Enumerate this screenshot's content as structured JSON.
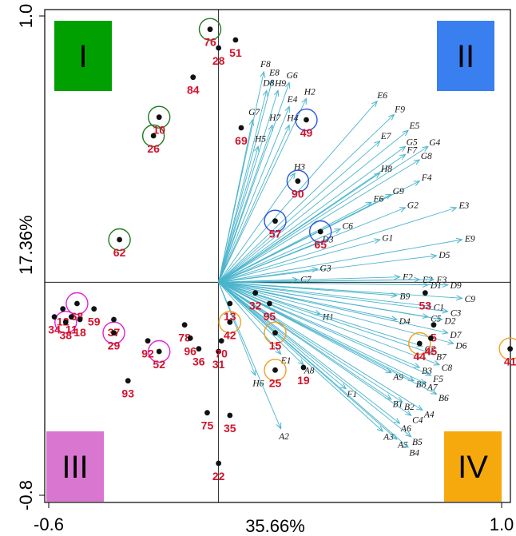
{
  "chart_data": {
    "type": "scatter",
    "subtype": "pca-biplot",
    "xlabel": "35.66%",
    "ylabel": "17.36%",
    "xlim": [
      -0.6,
      1.0
    ],
    "ylim": [
      -0.8,
      1.0
    ],
    "x_ticks": [
      "-0.6",
      "1.0"
    ],
    "y_ticks": [
      "1.0",
      "-0.8"
    ],
    "zero_lines": true,
    "arrow_color": "#4bb4cc",
    "quadrants": [
      {
        "label": "I",
        "color": "#00a000",
        "position": "top-left"
      },
      {
        "label": "II",
        "color": "#3a7ff0",
        "position": "top-right"
      },
      {
        "label": "III",
        "color": "#d876d0",
        "position": "bottom-left"
      },
      {
        "label": "IV",
        "color": "#f5a90d",
        "position": "bottom-right"
      }
    ],
    "circle_colors": {
      "I": "#1f7a1f",
      "II": "#2a55e0",
      "III": "#e01fe0",
      "IV": "#f0a020"
    },
    "points": [
      {
        "label": "76",
        "x": -0.03,
        "y": 0.95,
        "group": "I"
      },
      {
        "label": "28",
        "x": 0.0,
        "y": 0.88
      },
      {
        "label": "51",
        "x": 0.06,
        "y": 0.91
      },
      {
        "label": "84",
        "x": -0.09,
        "y": 0.77
      },
      {
        "label": "10",
        "x": -0.21,
        "y": 0.62,
        "group": "I"
      },
      {
        "label": "26",
        "x": -0.23,
        "y": 0.55,
        "group": "I"
      },
      {
        "label": "69",
        "x": 0.08,
        "y": 0.58
      },
      {
        "label": "49",
        "x": 0.31,
        "y": 0.61,
        "group": "II"
      },
      {
        "label": "90",
        "x": 0.28,
        "y": 0.38,
        "group": "II"
      },
      {
        "label": "57",
        "x": 0.2,
        "y": 0.23,
        "group": "II"
      },
      {
        "label": "65",
        "x": 0.36,
        "y": 0.19,
        "group": "II"
      },
      {
        "label": "62",
        "x": -0.35,
        "y": 0.16,
        "group": "I"
      },
      {
        "label": "68",
        "x": -0.5,
        "y": -0.08,
        "group": "III"
      },
      {
        "label": "59",
        "x": -0.44,
        "y": -0.1
      },
      {
        "label": "12",
        "x": -0.55,
        "y": -0.1
      },
      {
        "label": "34",
        "x": -0.58,
        "y": -0.13
      },
      {
        "label": "38",
        "x": -0.54,
        "y": -0.15,
        "group": "III"
      },
      {
        "label": "11",
        "x": -0.52,
        "y": -0.13
      },
      {
        "label": "18",
        "x": -0.49,
        "y": -0.14
      },
      {
        "label": "37",
        "x": -0.37,
        "y": -0.14
      },
      {
        "label": "29",
        "x": -0.37,
        "y": -0.19,
        "group": "III"
      },
      {
        "label": "78",
        "x": -0.12,
        "y": -0.16
      },
      {
        "label": "92",
        "x": -0.25,
        "y": -0.22
      },
      {
        "label": "52",
        "x": -0.21,
        "y": -0.26,
        "group": "III"
      },
      {
        "label": "96",
        "x": -0.1,
        "y": -0.21
      },
      {
        "label": "36",
        "x": -0.07,
        "y": -0.25
      },
      {
        "label": "31",
        "x": 0.0,
        "y": -0.26
      },
      {
        "label": "70",
        "x": 0.01,
        "y": -0.22
      },
      {
        "label": "13",
        "x": 0.04,
        "y": -0.08
      },
      {
        "label": "32",
        "x": 0.13,
        "y": -0.04
      },
      {
        "label": "42",
        "x": 0.04,
        "y": -0.15,
        "group": "IV"
      },
      {
        "label": "95",
        "x": 0.18,
        "y": -0.08
      },
      {
        "label": "15",
        "x": 0.2,
        "y": -0.19,
        "group": "IV"
      },
      {
        "label": "25",
        "x": 0.2,
        "y": -0.33,
        "group": "IV"
      },
      {
        "label": "19",
        "x": 0.3,
        "y": -0.32
      },
      {
        "label": "93",
        "x": -0.32,
        "y": -0.37
      },
      {
        "label": "75",
        "x": -0.04,
        "y": -0.49
      },
      {
        "label": "35",
        "x": 0.04,
        "y": -0.5
      },
      {
        "label": "22",
        "x": 0.0,
        "y": -0.68
      },
      {
        "label": "53",
        "x": 0.73,
        "y": -0.04
      },
      {
        "label": "5",
        "x": 0.76,
        "y": -0.16
      },
      {
        "label": "44",
        "x": 0.71,
        "y": -0.23,
        "group": "IV"
      },
      {
        "label": "45",
        "x": 0.75,
        "y": -0.21
      },
      {
        "label": "41",
        "x": 1.03,
        "y": -0.25,
        "group": "IV"
      }
    ],
    "vectors": [
      {
        "label": "F8",
        "x": 0.16,
        "y": 0.79
      },
      {
        "label": "E8",
        "x": 0.19,
        "y": 0.76
      },
      {
        "label": "G6",
        "x": 0.25,
        "y": 0.75
      },
      {
        "label": "D8",
        "x": 0.17,
        "y": 0.72
      },
      {
        "label": "H9",
        "x": 0.21,
        "y": 0.72
      },
      {
        "label": "H2",
        "x": 0.31,
        "y": 0.69
      },
      {
        "label": "E4",
        "x": 0.25,
        "y": 0.66
      },
      {
        "label": "G7",
        "x": 0.12,
        "y": 0.61
      },
      {
        "label": "H7",
        "x": 0.19,
        "y": 0.59
      },
      {
        "label": "H4",
        "x": 0.25,
        "y": 0.59
      },
      {
        "label": "H5",
        "x": 0.14,
        "y": 0.51
      },
      {
        "label": "E6",
        "x": 0.56,
        "y": 0.68
      },
      {
        "label": "F9",
        "x": 0.62,
        "y": 0.63
      },
      {
        "label": "E5",
        "x": 0.67,
        "y": 0.57
      },
      {
        "label": "E7",
        "x": 0.57,
        "y": 0.53
      },
      {
        "label": "G5",
        "x": 0.66,
        "y": 0.51
      },
      {
        "label": "F7",
        "x": 0.66,
        "y": 0.48
      },
      {
        "label": "G4",
        "x": 0.74,
        "y": 0.51
      },
      {
        "label": "G8",
        "x": 0.71,
        "y": 0.46
      },
      {
        "label": "H8",
        "x": 0.57,
        "y": 0.41
      },
      {
        "label": "H3",
        "x": 0.27,
        "y": 0.41
      },
      {
        "label": "F4",
        "x": 0.71,
        "y": 0.38
      },
      {
        "label": "G9",
        "x": 0.61,
        "y": 0.33
      },
      {
        "label": "F6",
        "x": 0.54,
        "y": 0.3
      },
      {
        "label": "G2",
        "x": 0.66,
        "y": 0.28
      },
      {
        "label": "E3",
        "x": 0.84,
        "y": 0.28
      },
      {
        "label": "C6",
        "x": 0.43,
        "y": 0.2
      },
      {
        "label": "D3",
        "x": 0.36,
        "y": 0.15
      },
      {
        "label": "G1",
        "x": 0.57,
        "y": 0.16
      },
      {
        "label": "E9",
        "x": 0.86,
        "y": 0.16
      },
      {
        "label": "D5",
        "x": 0.77,
        "y": 0.1
      },
      {
        "label": "G3",
        "x": 0.35,
        "y": 0.05
      },
      {
        "label": "C7",
        "x": 0.28,
        "y": 0.01
      },
      {
        "label": "F2",
        "x": 0.64,
        "y": 0.02
      },
      {
        "label": "E2",
        "x": 0.71,
        "y": 0.01
      },
      {
        "label": "F3",
        "x": 0.76,
        "y": 0.01
      },
      {
        "label": "D1",
        "x": 0.74,
        "y": -0.01
      },
      {
        "label": "D9",
        "x": 0.81,
        "y": -0.01
      },
      {
        "label": "B9",
        "x": 0.63,
        "y": -0.05
      },
      {
        "label": "C9",
        "x": 0.86,
        "y": -0.06
      },
      {
        "label": "C1",
        "x": 0.75,
        "y": -0.09
      },
      {
        "label": "C3",
        "x": 0.81,
        "y": -0.11
      },
      {
        "label": "H1",
        "x": 0.36,
        "y": -0.12
      },
      {
        "label": "D4",
        "x": 0.63,
        "y": -0.14
      },
      {
        "label": "C5",
        "x": 0.74,
        "y": -0.13
      },
      {
        "label": "D2",
        "x": 0.79,
        "y": -0.14
      },
      {
        "label": "D7",
        "x": 0.81,
        "y": -0.19
      },
      {
        "label": "D6",
        "x": 0.83,
        "y": -0.23
      },
      {
        "label": "C2",
        "x": 0.72,
        "y": -0.24
      },
      {
        "label": "B7",
        "x": 0.76,
        "y": -0.27
      },
      {
        "label": "C8",
        "x": 0.78,
        "y": -0.31
      },
      {
        "label": "B3",
        "x": 0.71,
        "y": -0.32
      },
      {
        "label": "F5",
        "x": 0.75,
        "y": -0.35
      },
      {
        "label": "A9",
        "x": 0.61,
        "y": -0.34
      },
      {
        "label": "B8",
        "x": 0.69,
        "y": -0.37
      },
      {
        "label": "A7",
        "x": 0.73,
        "y": -0.38
      },
      {
        "label": "B6",
        "x": 0.77,
        "y": -0.42
      },
      {
        "label": "F1",
        "x": 0.45,
        "y": -0.4
      },
      {
        "label": "B1",
        "x": 0.61,
        "y": -0.44
      },
      {
        "label": "B2",
        "x": 0.65,
        "y": -0.45
      },
      {
        "label": "A4",
        "x": 0.72,
        "y": -0.48
      },
      {
        "label": "C4",
        "x": 0.68,
        "y": -0.5
      },
      {
        "label": "A6",
        "x": 0.64,
        "y": -0.53
      },
      {
        "label": "A3",
        "x": 0.58,
        "y": -0.56
      },
      {
        "label": "A5",
        "x": 0.63,
        "y": -0.59
      },
      {
        "label": "B5",
        "x": 0.68,
        "y": -0.58
      },
      {
        "label": "B4",
        "x": 0.67,
        "y": -0.62
      },
      {
        "label": "E1",
        "x": 0.22,
        "y": -0.27
      },
      {
        "label": "A8",
        "x": 0.3,
        "y": -0.31
      },
      {
        "label": "H6",
        "x": 0.13,
        "y": -0.35
      },
      {
        "label": "A2",
        "x": 0.22,
        "y": -0.55
      }
    ]
  }
}
